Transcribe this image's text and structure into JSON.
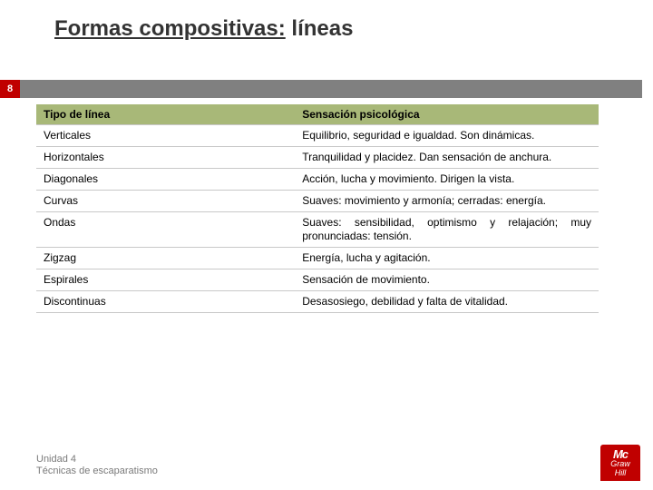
{
  "title_underlined": "Formas compositivas:",
  "title_rest": " líneas",
  "page_number": "8",
  "table": {
    "header_col1": "Tipo de línea",
    "header_col2": "Sensación psicológica",
    "rows": [
      {
        "c1": "Verticales",
        "c2": "Equilibrio, seguridad e igualdad. Son dinámicas."
      },
      {
        "c1": "Horizontales",
        "c2": "Tranquilidad y placidez. Dan sensación de anchura."
      },
      {
        "c1": "Diagonales",
        "c2": "Acción, lucha y movimiento. Dirigen la vista."
      },
      {
        "c1": "Curvas",
        "c2": "Suaves: movimiento y armonía; cerradas: energía."
      },
      {
        "c1": "Ondas",
        "c2": "Suaves: sensibilidad, optimismo y relajación; muy pronunciadas: tensión."
      },
      {
        "c1": "Zigzag",
        "c2": "Energía, lucha y agitación."
      },
      {
        "c1": "Espirales",
        "c2": "Sensación de movimiento."
      },
      {
        "c1": "Discontinuas",
        "c2": "Desasosiego, debilidad y falta de vitalidad."
      }
    ]
  },
  "footer_line1": "Unidad 4",
  "footer_line2": "Técnicas de escaparatismo",
  "logo": {
    "l1": "Mc",
    "l2": "Graw",
    "l3": "Hill"
  },
  "colors": {
    "header_bg": "#a8b878",
    "tab_bg": "#c00000",
    "gray_bar": "#808080",
    "row_border": "#c8c8c8"
  }
}
